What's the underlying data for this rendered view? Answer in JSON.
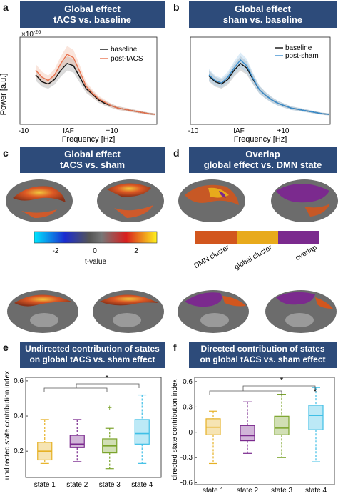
{
  "panels": {
    "a": {
      "label": "a",
      "header_line1": "Global effect",
      "header_line2": "tACS vs. baseline",
      "ylabel": "Power [a.u.]",
      "exponent": "×10",
      "exponent_power": "-26",
      "xlabel": "Frequency [Hz]",
      "xticks": [
        "-10",
        "IAF",
        "+10"
      ],
      "legend": [
        "baseline",
        "post-tACS"
      ]
    },
    "b": {
      "label": "b",
      "header_line1": "Global effect",
      "header_line2": "sham vs. baseline",
      "xlabel": "Frequency [Hz]",
      "xticks": [
        "-10",
        "IAF",
        "+10"
      ],
      "legend": [
        "baseline",
        "post-sham"
      ]
    },
    "c": {
      "label": "c",
      "header_line1": "Global effect",
      "header_line2": "tACS vs. sham",
      "colorbar_ticks": [
        "-2",
        "0",
        "2"
      ],
      "colorbar_label": "t-value"
    },
    "d": {
      "label": "d",
      "header_line1": "Overlap",
      "header_line2": "global effect vs. DMN state",
      "legend": [
        "DMN cluster",
        "global cluster",
        "overlap"
      ]
    },
    "e": {
      "label": "e",
      "header_line1": "Undirected contribution of states",
      "header_line2": "on global tACS vs. sham effect",
      "ylabel": "undirected state contribution index",
      "significance": "*"
    },
    "f": {
      "label": "f",
      "header_line1": "Directed contribution of states",
      "header_line2": "on global tACS vs. sham effect",
      "ylabel": "directed state contribution index",
      "significance": "*",
      "state4_marker": "*"
    }
  },
  "colors": {
    "header_bg": "#2d4b7a",
    "baseline": "#111111",
    "tacs": "#e8734f",
    "sham": "#3a8fd0",
    "dmn_cluster": "#d2561e",
    "global_cluster": "#e8aa1c",
    "overlap": "#7b2a8e",
    "state1": "#e6b125",
    "state2": "#7b2a8e",
    "state3": "#7aa32a",
    "state4": "#3fbfe6"
  },
  "chart_data": [
    {
      "type": "line",
      "x_ticks": [
        "-10",
        "IAF",
        "+10"
      ],
      "xlabel": "Frequency [Hz]",
      "ylabel": "Power [a.u.]",
      "y_exponent": "x10^-26",
      "series": [
        {
          "name": "baseline",
          "y": [
            0.42,
            0.36,
            0.34,
            0.38,
            0.46,
            0.52,
            0.5,
            0.4,
            0.3,
            0.25,
            0.2,
            0.17,
            0.15,
            0.13,
            0.12,
            0.11,
            0.1,
            0.09,
            0.08,
            0.075
          ]
        },
        {
          "name": "post-tACS",
          "y": [
            0.46,
            0.4,
            0.37,
            0.42,
            0.52,
            0.6,
            0.57,
            0.45,
            0.32,
            0.26,
            0.21,
            0.18,
            0.15,
            0.13,
            0.12,
            0.11,
            0.1,
            0.09,
            0.08,
            0.075
          ]
        }
      ]
    },
    {
      "type": "line",
      "x_ticks": [
        "-10",
        "IAF",
        "+10"
      ],
      "xlabel": "Frequency [Hz]",
      "series": [
        {
          "name": "baseline",
          "y": [
            0.41,
            0.36,
            0.34,
            0.38,
            0.46,
            0.52,
            0.48,
            0.38,
            0.29,
            0.24,
            0.2,
            0.17,
            0.15,
            0.13,
            0.12,
            0.11,
            0.1,
            0.09,
            0.08,
            0.075
          ]
        },
        {
          "name": "post-sham",
          "y": [
            0.42,
            0.37,
            0.35,
            0.4,
            0.48,
            0.55,
            0.5,
            0.39,
            0.29,
            0.24,
            0.2,
            0.17,
            0.15,
            0.13,
            0.12,
            0.11,
            0.1,
            0.09,
            0.08,
            0.075
          ]
        }
      ]
    },
    {
      "type": "box",
      "ylabel": "undirected state contribution index",
      "categories": [
        "state 1",
        "state 2",
        "state 3",
        "state 4"
      ],
      "yticks": [
        0.2,
        0.4,
        0.6
      ],
      "ylim": [
        0.05,
        0.62
      ],
      "boxes": [
        {
          "min": 0.13,
          "q1": 0.15,
          "median": 0.2,
          "q3": 0.25,
          "max": 0.38
        },
        {
          "min": 0.14,
          "q1": 0.22,
          "median": 0.24,
          "q3": 0.29,
          "max": 0.38
        },
        {
          "min": 0.1,
          "q1": 0.19,
          "median": 0.23,
          "q3": 0.27,
          "max": 0.33,
          "outliers": [
            0.45
          ]
        },
        {
          "min": 0.13,
          "q1": 0.24,
          "median": 0.3,
          "q3": 0.38,
          "max": 0.52
        }
      ]
    },
    {
      "type": "box",
      "ylabel": "directed state contribution index",
      "categories": [
        "state 1",
        "state 2",
        "state 3",
        "state 4"
      ],
      "yticks": [
        -0.6,
        -0.3,
        0,
        0.3,
        0.6
      ],
      "ylim": [
        -0.62,
        0.65
      ],
      "boxes": [
        {
          "min": -0.37,
          "q1": -0.03,
          "median": 0.06,
          "q3": 0.16,
          "max": 0.25
        },
        {
          "min": -0.25,
          "q1": -0.1,
          "median": -0.04,
          "q3": 0.08,
          "max": 0.36
        },
        {
          "min": -0.3,
          "q1": -0.03,
          "median": 0.05,
          "q3": 0.19,
          "max": 0.45
        },
        {
          "min": -0.35,
          "q1": 0.03,
          "median": 0.2,
          "q3": 0.32,
          "max": 0.53
        }
      ]
    }
  ]
}
